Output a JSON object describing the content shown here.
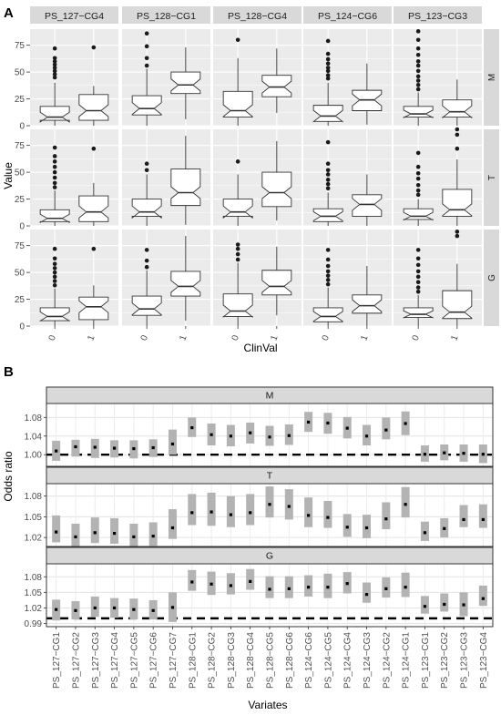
{
  "panel_a": {
    "label": "A",
    "y_title": "Value",
    "x_title": "ClinVal",
    "col_strips": [
      "PS_127−CG4",
      "PS_128−CG1",
      "PS_128−CG4",
      "PS_124−CG6",
      "PS_123−CG3"
    ],
    "row_strips": [
      "M",
      "T",
      "G"
    ],
    "y_ticks": [
      "0",
      "25",
      "50",
      "75"
    ],
    "x_ticks": [
      "0",
      "1"
    ]
  },
  "panel_b": {
    "label": "B",
    "y_title": "Odds ratio",
    "x_title": "Variates",
    "facets": [
      "M",
      "T",
      "G"
    ],
    "y_ticks": [
      [
        "1.00",
        "1.04",
        "1.08"
      ],
      [
        "1.02",
        "1.05",
        "1.08"
      ],
      [
        "0.99",
        "1.02",
        "1.05",
        "1.08"
      ]
    ],
    "variates": [
      "PS_127−CG1",
      "PS_127−CG2",
      "PS_127−CG3",
      "PS_127−CG4",
      "PS_127−CG5",
      "PS_127−CG6",
      "PS_127−CG7",
      "PS_128−CG1",
      "PS_128−CG2",
      "PS_128−CG3",
      "PS_128−CG4",
      "PS_128−CG5",
      "PS_128−CG6",
      "PS_124−CG6",
      "PS_124−CG5",
      "PS_124−CG4",
      "PS_124−CG3",
      "PS_124−CG2",
      "PS_124−CG1",
      "PS_123−CG1",
      "PS_123−CG2",
      "PS_123−CG3",
      "PS_123−CG4"
    ]
  },
  "colors": {
    "panel_bg": "#ebebeb",
    "grid": "#ffffff",
    "strip": "#d9d9d9",
    "ci_band": "#b3b3b3",
    "text": "#4d4d4d"
  },
  "chart_data": [
    {
      "type": "box",
      "title": "",
      "xlabel": "ClinVal",
      "ylabel": "Value",
      "ylim": [
        0,
        90
      ],
      "grid": true,
      "legend": "none",
      "notched": true,
      "facet_cols": [
        "PS_127−CG4",
        "PS_128−CG1",
        "PS_128−CG4",
        "PS_124−CG6",
        "PS_123−CG3"
      ],
      "facet_rows": [
        "M",
        "T",
        "G"
      ],
      "categories": [
        "0",
        "1"
      ],
      "boxes": [
        [
          [
            {
              "q1": 5,
              "med": 8,
              "q3": 18,
              "lo": 0,
              "hi": 40,
              "out": [
                45,
                48,
                51,
                54,
                57,
                60,
                63,
                72
              ]
            },
            {
              "q1": 5,
              "med": 14,
              "q3": 29,
              "lo": 0,
              "hi": 37,
              "out": [
                73
              ]
            }
          ],
          [
            {
              "q1": 10,
              "med": 16,
              "q3": 28,
              "lo": 0,
              "hi": 53,
              "out": [
                56,
                63,
                74,
                86
              ]
            },
            {
              "q1": 30,
              "med": 38,
              "q3": 50,
              "lo": 6,
              "hi": 73,
              "out": []
            }
          ],
          [
            {
              "q1": 8,
              "med": 14,
              "q3": 32,
              "lo": 0,
              "hi": 63,
              "out": [
                80
              ]
            },
            {
              "q1": 27,
              "med": 36,
              "q3": 47,
              "lo": 12,
              "hi": 72,
              "out": []
            }
          ],
          [
            {
              "q1": 4,
              "med": 9,
              "q3": 19,
              "lo": 0,
              "hi": 40,
              "out": [
                44,
                47,
                51,
                54,
                58,
                62,
                67,
                79
              ]
            },
            {
              "q1": 14,
              "med": 24,
              "q3": 33,
              "lo": 1,
              "hi": 58,
              "out": []
            }
          ],
          [
            {
              "q1": 8,
              "med": 11,
              "q3": 18,
              "lo": 0,
              "hi": 31,
              "out": [
                34,
                38,
                42,
                46,
                51,
                56,
                60,
                66,
                72,
                80,
                88
              ]
            },
            {
              "q1": 8,
              "med": 13,
              "q3": 24,
              "lo": 0,
              "hi": 43,
              "out": []
            }
          ]
        ],
        [
          [
            {
              "q1": 4,
              "med": 7,
              "q3": 15,
              "lo": 0,
              "hi": 33,
              "out": [
                36,
                40,
                45,
                50,
                55,
                60,
                65,
                73
              ]
            },
            {
              "q1": 4,
              "med": 13,
              "q3": 28,
              "lo": 0,
              "hi": 40,
              "out": [
                72
              ]
            }
          ],
          [
            {
              "q1": 9,
              "med": 13,
              "q3": 25,
              "lo": 0,
              "hi": 48,
              "out": [
                52,
                58
              ]
            },
            {
              "q1": 19,
              "med": 31,
              "q3": 53,
              "lo": 1,
              "hi": 84,
              "out": []
            }
          ],
          [
            {
              "q1": 9,
              "med": 13,
              "q3": 25,
              "lo": 0,
              "hi": 48,
              "out": [
                60
              ]
            },
            {
              "q1": 18,
              "med": 31,
              "q3": 50,
              "lo": 5,
              "hi": 79,
              "out": []
            }
          ],
          [
            {
              "q1": 4,
              "med": 9,
              "q3": 16,
              "lo": 0,
              "hi": 31,
              "out": [
                35,
                39,
                43,
                48,
                52,
                58,
                78
              ]
            },
            {
              "q1": 9,
              "med": 20,
              "q3": 29,
              "lo": 0,
              "hi": 48,
              "out": []
            }
          ],
          [
            {
              "q1": 6,
              "med": 9,
              "q3": 16,
              "lo": 0,
              "hi": 25,
              "out": [
                29,
                33,
                38,
                44,
                49,
                55,
                68
              ]
            },
            {
              "q1": 9,
              "med": 15,
              "q3": 34,
              "lo": 0,
              "hi": 62,
              "out": [
                72,
                85,
                90
              ]
            }
          ]
        ],
        [
          [
            {
              "q1": 5,
              "med": 9,
              "q3": 17,
              "lo": 0,
              "hi": 35,
              "out": [
                38,
                42,
                46,
                50,
                54,
                58,
                63,
                72
              ]
            },
            {
              "q1": 6,
              "med": 18,
              "q3": 27,
              "lo": 0,
              "hi": 38,
              "out": [
                72
              ]
            }
          ],
          [
            {
              "q1": 10,
              "med": 16,
              "q3": 28,
              "lo": 0,
              "hi": 52,
              "out": [
                55,
                61,
                71
              ]
            },
            {
              "q1": 28,
              "med": 37,
              "q3": 51,
              "lo": 5,
              "hi": 84,
              "out": []
            }
          ],
          [
            {
              "q1": 9,
              "med": 14,
              "q3": 30,
              "lo": 0,
              "hi": 59,
              "out": [
                62,
                67,
                72,
                76
              ]
            },
            {
              "q1": 29,
              "med": 37,
              "q3": 52,
              "lo": 10,
              "hi": 74,
              "out": []
            }
          ],
          [
            {
              "q1": 4,
              "med": 9,
              "q3": 17,
              "lo": 0,
              "hi": 36,
              "out": [
                39,
                43,
                47,
                51,
                56,
                62,
                71
              ]
            },
            {
              "q1": 12,
              "med": 19,
              "q3": 29,
              "lo": 0,
              "hi": 56,
              "out": []
            }
          ],
          [
            {
              "q1": 8,
              "med": 11,
              "q3": 17,
              "lo": 0,
              "hi": 29,
              "out": [
                32,
                36,
                41,
                46,
                51,
                57,
                63,
                71
              ]
            },
            {
              "q1": 7,
              "med": 13,
              "q3": 33,
              "lo": 0,
              "hi": 58,
              "out": [
                84,
                88
              ]
            }
          ]
        ]
      ]
    },
    {
      "type": "errorbar",
      "title": "",
      "xlabel": "Variates",
      "ylabel": "Odds ratio",
      "grid": true,
      "legend": "none",
      "reference_line": 1.0,
      "categories": [
        "PS_127−CG1",
        "PS_127−CG2",
        "PS_127−CG3",
        "PS_127−CG4",
        "PS_127−CG5",
        "PS_127−CG6",
        "PS_127−CG7",
        "PS_128−CG1",
        "PS_128−CG2",
        "PS_128−CG3",
        "PS_128−CG4",
        "PS_128−CG5",
        "PS_128−CG6",
        "PS_124−CG6",
        "PS_124−CG5",
        "PS_124−CG4",
        "PS_124−CG3",
        "PS_124−CG2",
        "PS_124−CG1",
        "PS_123−CG1",
        "PS_123−CG2",
        "PS_123−CG3",
        "PS_123−CG4"
      ],
      "series": [
        {
          "name": "M",
          "ylim": [
            0.975,
            1.11
          ],
          "estimate": [
            1.008,
            1.017,
            1.016,
            1.014,
            1.013,
            1.015,
            1.023,
            1.058,
            1.043,
            1.04,
            1.047,
            1.038,
            1.041,
            1.07,
            1.068,
            1.057,
            1.04,
            1.053,
            1.067,
            1.001,
            1.004,
            1.003,
            1.001
          ],
          "lower": [
            0.987,
            0.996,
            0.993,
            0.994,
            0.992,
            0.995,
            1.0,
            1.038,
            1.02,
            1.018,
            1.024,
            1.019,
            1.021,
            1.049,
            1.045,
            1.035,
            1.02,
            1.033,
            1.042,
            0.985,
            0.988,
            0.985,
            0.982
          ],
          "upper": [
            1.03,
            1.032,
            1.034,
            1.031,
            1.031,
            1.033,
            1.054,
            1.08,
            1.067,
            1.064,
            1.069,
            1.062,
            1.065,
            1.092,
            1.09,
            1.081,
            1.064,
            1.08,
            1.093,
            1.02,
            1.022,
            1.022,
            1.022
          ]
        },
        {
          "name": "T",
          "ylim": [
            1.007,
            1.098
          ],
          "estimate": [
            1.028,
            1.021,
            1.027,
            1.026,
            1.021,
            1.022,
            1.034,
            1.056,
            1.057,
            1.053,
            1.056,
            1.068,
            1.065,
            1.052,
            1.049,
            1.035,
            1.034,
            1.047,
            1.068,
            1.027,
            1.033,
            1.046,
            1.046
          ],
          "lower": [
            1.013,
            1.007,
            1.012,
            1.011,
            1.007,
            1.008,
            1.018,
            1.038,
            1.037,
            1.035,
            1.038,
            1.049,
            1.046,
            1.035,
            1.034,
            1.021,
            1.019,
            1.032,
            1.049,
            1.015,
            1.02,
            1.035,
            1.034
          ],
          "upper": [
            1.052,
            1.04,
            1.049,
            1.048,
            1.04,
            1.042,
            1.061,
            1.083,
            1.085,
            1.08,
            1.083,
            1.094,
            1.09,
            1.078,
            1.073,
            1.054,
            1.053,
            1.071,
            1.093,
            1.043,
            1.048,
            1.067,
            1.068
          ]
        },
        {
          "name": "G",
          "ylim": [
            0.984,
            1.105
          ],
          "estimate": [
            1.017,
            1.015,
            1.02,
            1.02,
            1.017,
            1.015,
            1.021,
            1.07,
            1.066,
            1.063,
            1.071,
            1.056,
            1.057,
            1.06,
            1.06,
            1.067,
            1.046,
            1.057,
            1.06,
            1.023,
            1.027,
            1.026,
            1.038
          ],
          "lower": [
            0.996,
            0.998,
            1.003,
            1.001,
            0.998,
            0.998,
            0.993,
            1.053,
            1.045,
            1.046,
            1.055,
            1.039,
            1.039,
            1.042,
            1.039,
            1.048,
            1.03,
            1.04,
            1.041,
            1.009,
            1.013,
            1.004,
            1.024
          ],
          "upper": [
            1.036,
            1.033,
            1.042,
            1.039,
            1.038,
            1.035,
            1.05,
            1.093,
            1.09,
            1.087,
            1.095,
            1.081,
            1.081,
            1.083,
            1.086,
            1.089,
            1.069,
            1.079,
            1.088,
            1.043,
            1.048,
            1.05,
            1.063
          ]
        }
      ]
    }
  ]
}
